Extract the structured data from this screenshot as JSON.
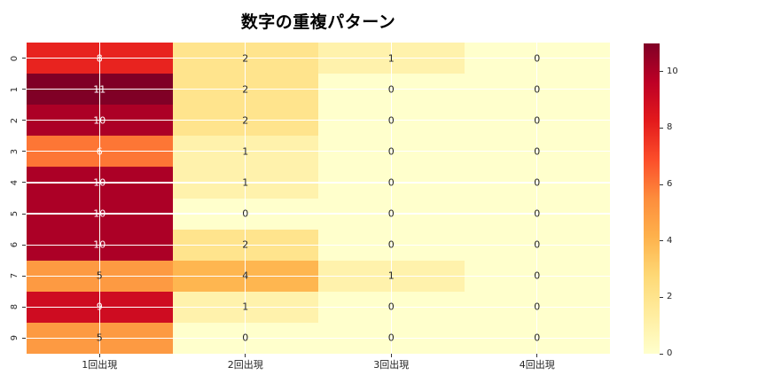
{
  "figure": {
    "background": "#ffffff"
  },
  "chart_data": {
    "type": "heatmap",
    "title": "数字の重複パターン",
    "categories": [
      "1回出現",
      "2回出現",
      "3回出現",
      "4回出現"
    ],
    "row_labels": [
      "0",
      "1",
      "2",
      "3",
      "4",
      "5",
      "6",
      "7",
      "8",
      "9"
    ],
    "values": [
      [
        8,
        2,
        1,
        0
      ],
      [
        11,
        2,
        0,
        0
      ],
      [
        10,
        2,
        0,
        0
      ],
      [
        6,
        1,
        0,
        0
      ],
      [
        10,
        1,
        0,
        0
      ],
      [
        10,
        0,
        0,
        0
      ],
      [
        10,
        2,
        0,
        0
      ],
      [
        5,
        4,
        1,
        0
      ],
      [
        9,
        1,
        0,
        0
      ],
      [
        5,
        0,
        0,
        0
      ]
    ],
    "vmin": 0,
    "vmax": 11,
    "colormap_name": "YlOrRd",
    "colormap_stops": [
      "#FFFFCC",
      "#FFEDA0",
      "#FED976",
      "#FEB24C",
      "#FD8D3C",
      "#FC4E2A",
      "#E31A1C",
      "#BD0026",
      "#800026"
    ],
    "colorbar_ticks": [
      "0",
      "2",
      "4",
      "6",
      "8",
      "10"
    ],
    "grid": {
      "on": true,
      "color": "#ffffff"
    },
    "annotation_color_high": "#ffffff",
    "annotation_color_low": "#262626",
    "legend_position": "right-colorbar",
    "xlabel": "",
    "ylabel": ""
  }
}
